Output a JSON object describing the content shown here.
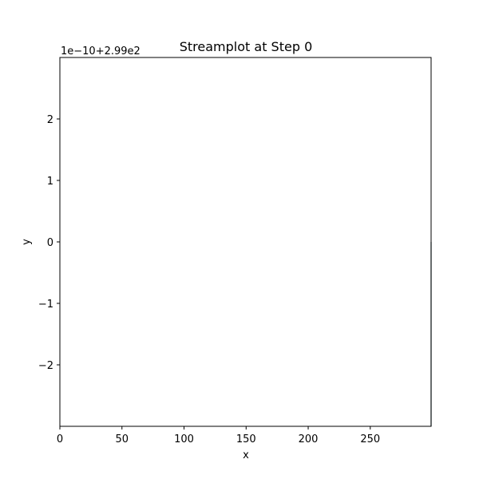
{
  "chart_data": {
    "type": "streamplot",
    "title": "Streamplot at Step 0",
    "xlabel": "x",
    "ylabel": "y",
    "xlim": [
      0,
      299
    ],
    "ylim": [
      -3,
      3
    ],
    "x_ticks": [
      {
        "value": 0,
        "label": "0"
      },
      {
        "value": 50,
        "label": "50"
      },
      {
        "value": 100,
        "label": "100"
      },
      {
        "value": 150,
        "label": "150"
      },
      {
        "value": 200,
        "label": "200"
      },
      {
        "value": 250,
        "label": "250"
      }
    ],
    "y_ticks": [
      {
        "value": 2,
        "label": "2"
      },
      {
        "value": 1,
        "label": "1"
      },
      {
        "value": 0,
        "label": "0"
      },
      {
        "value": -1,
        "label": "−1"
      },
      {
        "value": -2,
        "label": "−2"
      }
    ],
    "y_offset_label": "1e−10+2.99e2",
    "grid": false,
    "legend": "none",
    "streamlines": [
      {
        "x": [
          299,
          299
        ],
        "y": [
          0,
          -3
        ],
        "color": "#1a3a45"
      }
    ]
  }
}
